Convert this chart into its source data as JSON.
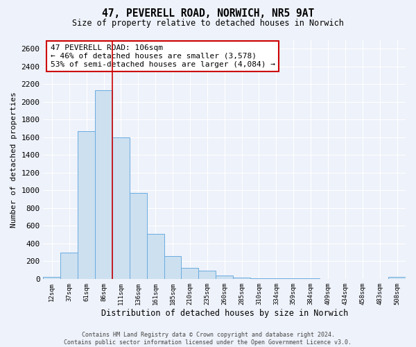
{
  "title": "47, PEVERELL ROAD, NORWICH, NR5 9AT",
  "subtitle": "Size of property relative to detached houses in Norwich",
  "xlabel": "Distribution of detached houses by size in Norwich",
  "ylabel": "Number of detached properties",
  "bar_labels": [
    "12sqm",
    "37sqm",
    "61sqm",
    "86sqm",
    "111sqm",
    "136sqm",
    "161sqm",
    "185sqm",
    "210sqm",
    "235sqm",
    "260sqm",
    "285sqm",
    "310sqm",
    "334sqm",
    "359sqm",
    "384sqm",
    "409sqm",
    "434sqm",
    "458sqm",
    "483sqm",
    "508sqm"
  ],
  "bar_values": [
    20,
    300,
    1670,
    2130,
    1600,
    970,
    510,
    255,
    125,
    95,
    35,
    15,
    5,
    5,
    3,
    3,
    2,
    2,
    2,
    2,
    20
  ],
  "bar_color": "#cce0f0",
  "bar_edge_color": "#6aace0",
  "vline_color": "#cc0000",
  "annotation_title": "47 PEVERELL ROAD: 106sqm",
  "annotation_line1": "← 46% of detached houses are smaller (3,578)",
  "annotation_line2": "53% of semi-detached houses are larger (4,084) →",
  "annotation_box_color": "white",
  "annotation_box_edge_color": "#cc0000",
  "ylim": [
    0,
    2700
  ],
  "yticks": [
    0,
    200,
    400,
    600,
    800,
    1000,
    1200,
    1400,
    1600,
    1800,
    2000,
    2200,
    2400,
    2600
  ],
  "footer_line1": "Contains HM Land Registry data © Crown copyright and database right 2024.",
  "footer_line2": "Contains public sector information licensed under the Open Government Licence v3.0.",
  "background_color": "#eef2fa",
  "grid_color": "#ffffff",
  "vline_index": 4
}
